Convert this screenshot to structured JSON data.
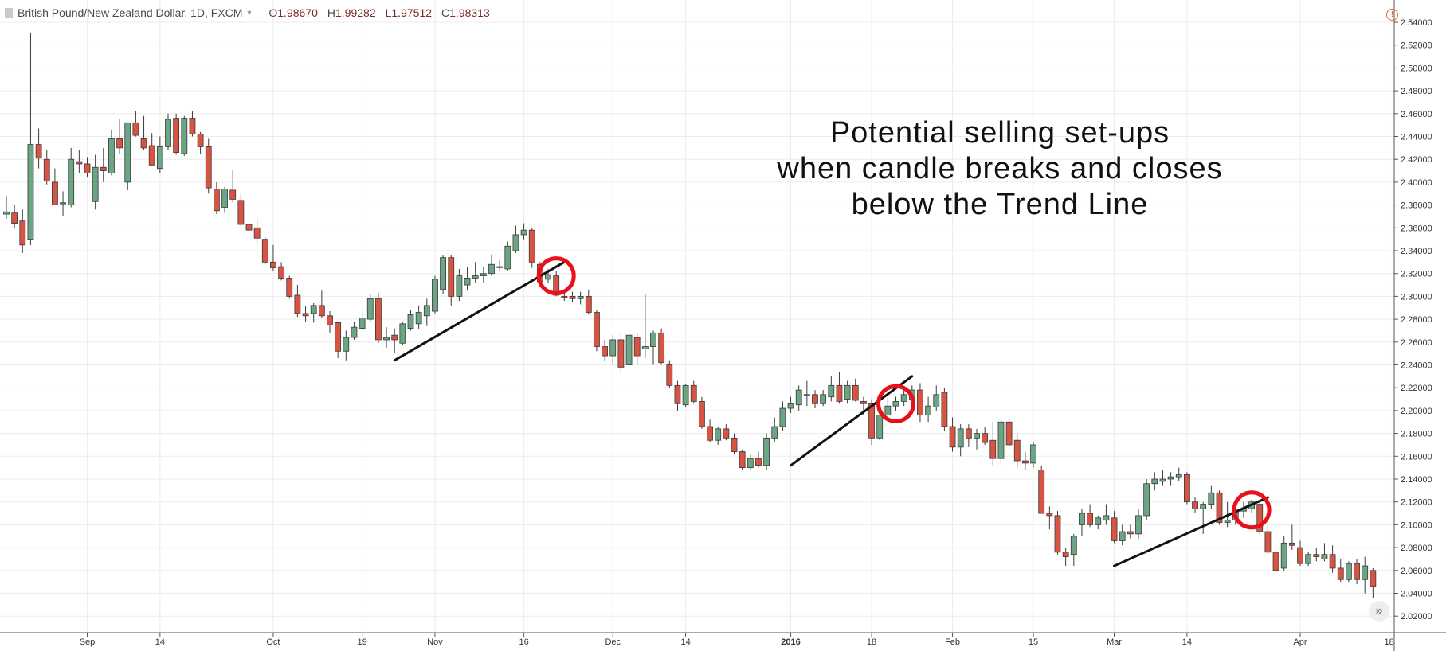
{
  "header": {
    "symbol": "British Pound/New Zealand Dollar, 1D, FXCM",
    "open_label": "O",
    "open": "1.98670",
    "high_label": "H",
    "high": "1.99282",
    "low_label": "L",
    "low": "1.97512",
    "close_label": "C",
    "close": "1.98313"
  },
  "annotation": {
    "lines": [
      "Potential selling set-ups",
      "when candle breaks and closes",
      "below the Trend Line"
    ]
  },
  "colors": {
    "up": "#6ba583",
    "down": "#d75442",
    "border": "#3a3a3a",
    "grid": "#ececec",
    "trend_line": "#111111",
    "highlight": "#e8101a"
  },
  "icons": {
    "warning": "warning-icon",
    "scroll": "scroll-right-icon",
    "symbol": "symbol-icon"
  },
  "chart_data": {
    "type": "candlestick",
    "title": "British Pound/New Zealand Dollar, 1D, FXCM",
    "ylim": [
      2.02,
      2.55
    ],
    "y_ticks": [
      "2.54000",
      "2.52000",
      "2.50000",
      "2.48000",
      "2.46000",
      "2.44000",
      "2.42000",
      "2.40000",
      "2.38000",
      "2.36000",
      "2.34000",
      "2.32000",
      "2.30000",
      "2.28000",
      "2.26000",
      "2.24000",
      "2.22000",
      "2.20000",
      "2.18000",
      "2.16000",
      "2.14000",
      "2.12000",
      "2.10000",
      "2.08000",
      "2.06000",
      "2.04000",
      "2.02000"
    ],
    "x_ticks": [
      {
        "label": "Sep",
        "index": 10,
        "bold": false
      },
      {
        "label": "14",
        "index": 19,
        "bold": false
      },
      {
        "label": "Oct",
        "index": 33,
        "bold": false
      },
      {
        "label": "19",
        "index": 44,
        "bold": false
      },
      {
        "label": "Nov",
        "index": 53,
        "bold": false
      },
      {
        "label": "16",
        "index": 64,
        "bold": false
      },
      {
        "label": "Dec",
        "index": 75,
        "bold": false
      },
      {
        "label": "14",
        "index": 84,
        "bold": false
      },
      {
        "label": "2016",
        "index": 97,
        "bold": true
      },
      {
        "label": "18",
        "index": 107,
        "bold": false
      },
      {
        "label": "Feb",
        "index": 117,
        "bold": false
      },
      {
        "label": "15",
        "index": 127,
        "bold": false
      },
      {
        "label": "Mar",
        "index": 137,
        "bold": false
      },
      {
        "label": "14",
        "index": 146,
        "bold": false
      },
      {
        "label": "Apr",
        "index": 160,
        "bold": false
      },
      {
        "label": "18",
        "index": 171,
        "bold": false
      }
    ],
    "ohlc": [
      [
        2.372,
        2.388,
        2.368,
        2.374
      ],
      [
        2.373,
        2.38,
        2.36,
        2.364
      ],
      [
        2.366,
        2.376,
        2.338,
        2.345
      ],
      [
        2.35,
        2.531,
        2.345,
        2.433
      ],
      [
        2.433,
        2.447,
        2.412,
        2.421
      ],
      [
        2.42,
        2.428,
        2.398,
        2.401
      ],
      [
        2.4,
        2.412,
        2.38,
        2.38
      ],
      [
        2.381,
        2.392,
        2.37,
        2.382
      ],
      [
        2.38,
        2.43,
        2.378,
        2.42
      ],
      [
        2.418,
        2.428,
        2.408,
        2.416
      ],
      [
        2.416,
        2.422,
        2.404,
        2.408
      ],
      [
        2.383,
        2.424,
        2.376,
        2.413
      ],
      [
        2.413,
        2.43,
        2.4,
        2.41
      ],
      [
        2.408,
        2.446,
        2.406,
        2.438
      ],
      [
        2.438,
        2.455,
        2.425,
        2.43
      ],
      [
        2.4,
        2.451,
        2.393,
        2.452
      ],
      [
        2.452,
        2.462,
        2.44,
        2.441
      ],
      [
        2.438,
        2.458,
        2.428,
        2.43
      ],
      [
        2.432,
        2.443,
        2.414,
        2.415
      ],
      [
        2.412,
        2.44,
        2.408,
        2.431
      ],
      [
        2.431,
        2.46,
        2.428,
        2.455
      ],
      [
        2.456,
        2.46,
        2.424,
        2.426
      ],
      [
        2.425,
        2.458,
        2.423,
        2.456
      ],
      [
        2.456,
        2.462,
        2.44,
        2.442
      ],
      [
        2.442,
        2.444,
        2.425,
        2.431
      ],
      [
        2.431,
        2.438,
        2.39,
        2.395
      ],
      [
        2.394,
        2.4,
        2.372,
        2.375
      ],
      [
        2.378,
        2.396,
        2.373,
        2.394
      ],
      [
        2.393,
        2.411,
        2.382,
        2.385
      ],
      [
        2.384,
        2.39,
        2.362,
        2.363
      ],
      [
        2.363,
        2.366,
        2.35,
        2.358
      ],
      [
        2.36,
        2.368,
        2.346,
        2.351
      ],
      [
        2.35,
        2.352,
        2.328,
        2.33
      ],
      [
        2.33,
        2.345,
        2.322,
        2.325
      ],
      [
        2.326,
        2.33,
        2.314,
        2.316
      ],
      [
        2.316,
        2.318,
        2.298,
        2.3
      ],
      [
        2.301,
        2.31,
        2.282,
        2.285
      ],
      [
        2.285,
        2.292,
        2.278,
        2.283
      ],
      [
        2.285,
        2.294,
        2.277,
        2.292
      ],
      [
        2.292,
        2.305,
        2.281,
        2.283
      ],
      [
        2.283,
        2.287,
        2.268,
        2.275
      ],
      [
        2.277,
        2.278,
        2.246,
        2.252
      ],
      [
        2.252,
        2.27,
        2.244,
        2.264
      ],
      [
        2.264,
        2.278,
        2.262,
        2.273
      ],
      [
        2.272,
        2.288,
        2.27,
        2.281
      ],
      [
        2.28,
        2.302,
        2.278,
        2.298
      ],
      [
        2.298,
        2.303,
        2.259,
        2.262
      ],
      [
        2.262,
        2.273,
        2.255,
        2.264
      ],
      [
        2.266,
        2.272,
        2.25,
        2.262
      ],
      [
        2.259,
        2.278,
        2.257,
        2.276
      ],
      [
        2.272,
        2.288,
        2.27,
        2.284
      ],
      [
        2.276,
        2.292,
        2.271,
        2.286
      ],
      [
        2.283,
        2.298,
        2.274,
        2.292
      ],
      [
        2.287,
        2.318,
        2.285,
        2.315
      ],
      [
        2.306,
        2.336,
        2.302,
        2.334
      ],
      [
        2.334,
        2.336,
        2.292,
        2.3
      ],
      [
        2.3,
        2.324,
        2.296,
        2.318
      ],
      [
        2.31,
        2.326,
        2.305,
        2.316
      ],
      [
        2.316,
        2.33,
        2.312,
        2.318
      ],
      [
        2.318,
        2.326,
        2.312,
        2.32
      ],
      [
        2.32,
        2.336,
        2.318,
        2.328
      ],
      [
        2.326,
        2.332,
        2.323,
        2.326
      ],
      [
        2.324,
        2.348,
        2.322,
        2.344
      ],
      [
        2.34,
        2.362,
        2.338,
        2.354
      ],
      [
        2.354,
        2.364,
        2.35,
        2.358
      ],
      [
        2.358,
        2.36,
        2.325,
        2.33
      ],
      [
        2.328,
        2.33,
        2.31,
        2.313
      ],
      [
        2.315,
        2.324,
        2.312,
        2.319
      ],
      [
        2.318,
        2.322,
        2.3,
        2.301
      ],
      [
        2.3,
        2.302,
        2.296,
        2.299
      ],
      [
        2.3,
        2.304,
        2.295,
        2.298
      ],
      [
        2.298,
        2.304,
        2.293,
        2.3
      ],
      [
        2.3,
        2.306,
        2.284,
        2.286
      ],
      [
        2.286,
        2.288,
        2.252,
        2.256
      ],
      [
        2.256,
        2.262,
        2.243,
        2.248
      ],
      [
        2.248,
        2.266,
        2.24,
        2.262
      ],
      [
        2.262,
        2.268,
        2.232,
        2.238
      ],
      [
        2.24,
        2.272,
        2.238,
        2.266
      ],
      [
        2.264,
        2.268,
        2.24,
        2.248
      ],
      [
        2.254,
        2.302,
        2.246,
        2.256
      ],
      [
        2.256,
        2.27,
        2.24,
        2.268
      ],
      [
        2.268,
        2.272,
        2.24,
        2.242
      ],
      [
        2.24,
        2.244,
        2.22,
        2.222
      ],
      [
        2.222,
        2.226,
        2.2,
        2.206
      ],
      [
        2.205,
        2.223,
        2.203,
        2.222
      ],
      [
        2.222,
        2.226,
        2.206,
        2.208
      ],
      [
        2.208,
        2.212,
        2.184,
        2.186
      ],
      [
        2.186,
        2.192,
        2.172,
        2.174
      ],
      [
        2.174,
        2.186,
        2.17,
        2.184
      ],
      [
        2.184,
        2.188,
        2.174,
        2.176
      ],
      [
        2.176,
        2.18,
        2.162,
        2.164
      ],
      [
        2.164,
        2.166,
        2.148,
        2.15
      ],
      [
        2.15,
        2.162,
        2.148,
        2.158
      ],
      [
        2.158,
        2.164,
        2.15,
        2.152
      ],
      [
        2.152,
        2.18,
        2.148,
        2.176
      ],
      [
        2.176,
        2.194,
        2.172,
        2.186
      ],
      [
        2.186,
        2.208,
        2.182,
        2.202
      ],
      [
        2.202,
        2.212,
        2.198,
        2.206
      ],
      [
        2.205,
        2.222,
        2.2,
        2.218
      ],
      [
        2.214,
        2.226,
        2.204,
        2.214
      ],
      [
        2.214,
        2.218,
        2.202,
        2.206
      ],
      [
        2.206,
        2.218,
        2.204,
        2.214
      ],
      [
        2.212,
        2.23,
        2.208,
        2.222
      ],
      [
        2.222,
        2.234,
        2.206,
        2.208
      ],
      [
        2.21,
        2.226,
        2.206,
        2.222
      ],
      [
        2.222,
        2.228,
        2.208,
        2.209
      ],
      [
        2.208,
        2.212,
        2.196,
        2.206
      ],
      [
        2.206,
        2.21,
        2.17,
        2.176
      ],
      [
        2.176,
        2.204,
        2.174,
        2.196
      ],
      [
        2.196,
        2.212,
        2.194,
        2.204
      ],
      [
        2.204,
        2.212,
        2.2,
        2.208
      ],
      [
        2.208,
        2.218,
        2.204,
        2.214
      ],
      [
        2.21,
        2.222,
        2.206,
        2.218
      ],
      [
        2.218,
        2.224,
        2.19,
        2.196
      ],
      [
        2.196,
        2.212,
        2.19,
        2.204
      ],
      [
        2.203,
        2.222,
        2.2,
        2.214
      ],
      [
        2.216,
        2.22,
        2.182,
        2.186
      ],
      [
        2.186,
        2.194,
        2.164,
        2.168
      ],
      [
        2.168,
        2.188,
        2.16,
        2.184
      ],
      [
        2.184,
        2.188,
        2.168,
        2.176
      ],
      [
        2.176,
        2.184,
        2.166,
        2.18
      ],
      [
        2.18,
        2.186,
        2.17,
        2.172
      ],
      [
        2.174,
        2.19,
        2.152,
        2.158
      ],
      [
        2.158,
        2.194,
        2.152,
        2.19
      ],
      [
        2.19,
        2.194,
        2.166,
        2.17
      ],
      [
        2.174,
        2.18,
        2.15,
        2.156
      ],
      [
        2.156,
        2.164,
        2.148,
        2.154
      ],
      [
        2.154,
        2.172,
        2.15,
        2.17
      ],
      [
        2.148,
        2.152,
        2.11,
        2.11
      ],
      [
        2.11,
        2.116,
        2.096,
        2.108
      ],
      [
        2.108,
        2.112,
        2.074,
        2.076
      ],
      [
        2.076,
        2.08,
        2.064,
        2.072
      ],
      [
        2.074,
        2.092,
        2.064,
        2.09
      ],
      [
        2.1,
        2.114,
        2.09,
        2.11
      ],
      [
        2.11,
        2.118,
        2.098,
        2.1
      ],
      [
        2.1,
        2.108,
        2.096,
        2.106
      ],
      [
        2.104,
        2.118,
        2.1,
        2.108
      ],
      [
        2.106,
        2.112,
        2.084,
        2.086
      ],
      [
        2.086,
        2.1,
        2.082,
        2.094
      ],
      [
        2.094,
        2.1,
        2.088,
        2.092
      ],
      [
        2.092,
        2.114,
        2.088,
        2.108
      ],
      [
        2.108,
        2.14,
        2.104,
        2.136
      ],
      [
        2.136,
        2.146,
        2.13,
        2.14
      ],
      [
        2.138,
        2.148,
        2.134,
        2.14
      ],
      [
        2.14,
        2.146,
        2.134,
        2.142
      ],
      [
        2.142,
        2.15,
        2.138,
        2.144
      ],
      [
        2.144,
        2.146,
        2.118,
        2.12
      ],
      [
        2.12,
        2.124,
        2.11,
        2.114
      ],
      [
        2.114,
        2.12,
        2.092,
        2.118
      ],
      [
        2.118,
        2.134,
        2.114,
        2.128
      ],
      [
        2.128,
        2.13,
        2.1,
        2.102
      ],
      [
        2.102,
        2.12,
        2.098,
        2.104
      ],
      [
        2.104,
        2.122,
        2.1,
        2.112
      ],
      [
        2.112,
        2.12,
        2.106,
        2.114
      ],
      [
        2.114,
        2.122,
        2.11,
        2.12
      ],
      [
        2.118,
        2.12,
        2.092,
        2.094
      ],
      [
        2.094,
        2.1,
        2.074,
        2.076
      ],
      [
        2.076,
        2.082,
        2.058,
        2.06
      ],
      [
        2.062,
        2.09,
        2.06,
        2.084
      ],
      [
        2.084,
        2.1,
        2.078,
        2.082
      ],
      [
        2.08,
        2.086,
        2.064,
        2.066
      ],
      [
        2.066,
        2.076,
        2.064,
        2.074
      ],
      [
        2.074,
        2.08,
        2.068,
        2.072
      ],
      [
        2.07,
        2.084,
        2.068,
        2.074
      ],
      [
        2.074,
        2.082,
        2.058,
        2.062
      ],
      [
        2.062,
        2.07,
        2.05,
        2.052
      ],
      [
        2.052,
        2.068,
        2.05,
        2.066
      ],
      [
        2.066,
        2.07,
        2.048,
        2.052
      ],
      [
        2.052,
        2.072,
        2.04,
        2.064
      ],
      [
        2.06,
        2.062,
        2.036,
        2.046
      ]
    ],
    "trend_lines": [
      {
        "from": [
          48,
          2.244
        ],
        "to": [
          69,
          2.33
        ]
      },
      {
        "from": [
          97,
          2.152
        ],
        "to": [
          112,
          2.23
        ]
      },
      {
        "from": [
          137,
          2.064
        ],
        "to": [
          156,
          2.124
        ]
      }
    ],
    "highlights": [
      {
        "index": 68,
        "price": 2.318
      },
      {
        "index": 110,
        "price": 2.206
      },
      {
        "index": 154,
        "price": 2.113
      }
    ]
  }
}
